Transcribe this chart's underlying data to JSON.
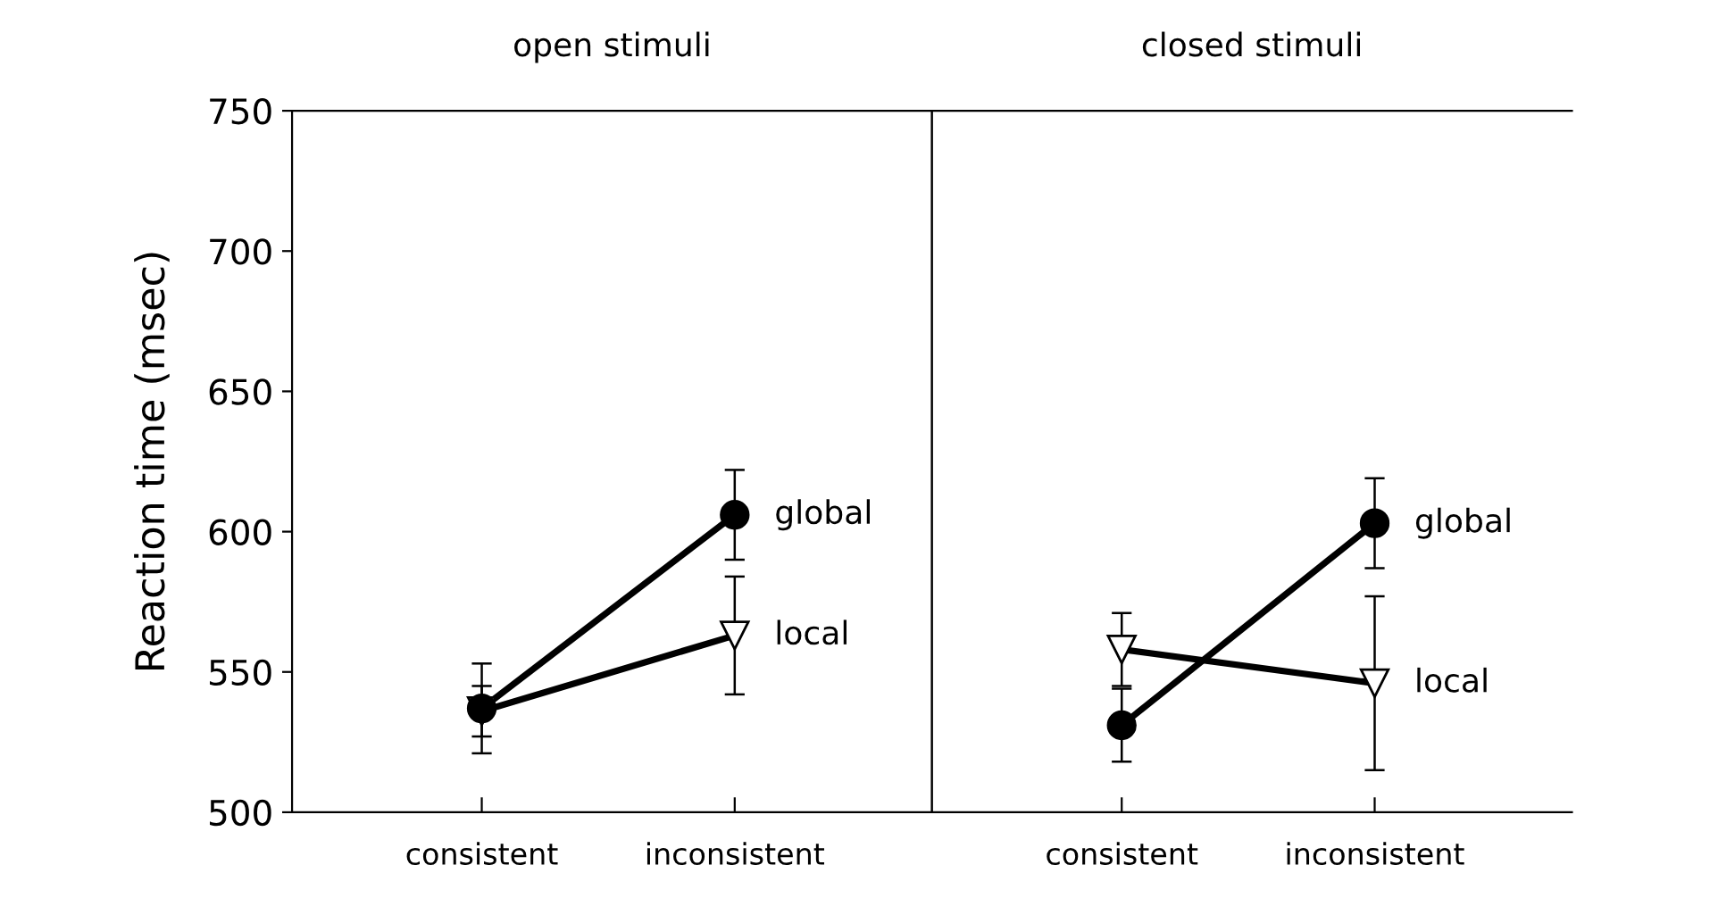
{
  "chart_data": [
    {
      "type": "line",
      "title": "open stimuli",
      "ylabel": "Reaction time (msec)",
      "categories": [
        "consistent",
        "inconsistent"
      ],
      "ylim": [
        500,
        750
      ],
      "yticks": [
        500,
        550,
        600,
        650,
        700,
        750
      ],
      "grid": false,
      "legend": false,
      "series": [
        {
          "name": "global",
          "color": "#000000",
          "marker": "circle",
          "values": [
            537,
            606
          ],
          "errors": [
            16,
            16
          ]
        },
        {
          "name": "local",
          "color": "#000000",
          "marker": "triangle",
          "values": [
            536,
            563
          ],
          "errors": [
            9,
            21
          ]
        }
      ]
    },
    {
      "type": "line",
      "title": "closed stimuli",
      "categories": [
        "consistent",
        "inconsistent"
      ],
      "ylim": [
        500,
        750
      ],
      "tick_labels": "x",
      "grid": false,
      "legend": false,
      "series": [
        {
          "name": "global",
          "color": "#000000",
          "marker": "circle",
          "values": [
            531,
            603
          ],
          "errors": [
            13,
            16
          ]
        },
        {
          "name": "local",
          "color": "#000000",
          "marker": "triangle",
          "values": [
            558,
            546
          ],
          "errors": [
            13,
            31
          ]
        }
      ]
    }
  ]
}
